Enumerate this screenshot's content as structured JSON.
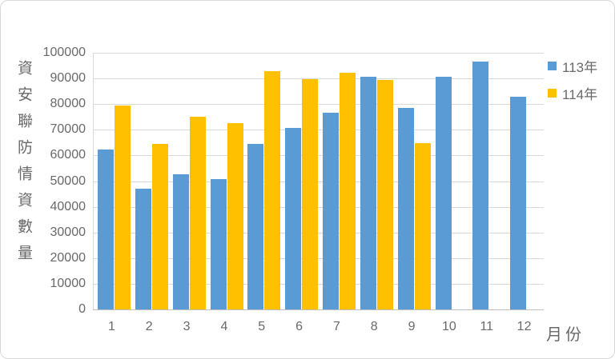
{
  "chart_data": {
    "type": "bar",
    "title": "",
    "xlabel": "月份",
    "ylabel": "資安聯防情資數量",
    "categories": [
      "1",
      "2",
      "3",
      "4",
      "5",
      "6",
      "7",
      "8",
      "9",
      "10",
      "11",
      "12"
    ],
    "series": [
      {
        "name": "113年",
        "color": "#5B9BD5",
        "values": [
          62200,
          47000,
          52600,
          50800,
          64500,
          70600,
          76500,
          90600,
          78500,
          90800,
          96500,
          83000
        ]
      },
      {
        "name": "114年",
        "color": "#FFC000",
        "values": [
          79400,
          64400,
          75100,
          72600,
          92800,
          89800,
          92300,
          89300,
          64800,
          null,
          null,
          null
        ]
      }
    ],
    "ylim": [
      0,
      100000
    ],
    "yticks": [
      0,
      10000,
      20000,
      30000,
      40000,
      50000,
      60000,
      70000,
      80000,
      90000,
      100000
    ],
    "ytick_labels": [
      "0",
      "10000",
      "20000",
      "30000",
      "40000",
      "50000",
      "60000",
      "70000",
      "80000",
      "90000",
      "100000"
    ],
    "grid": true,
    "legend_position": "top-right"
  },
  "colors": {
    "gridline": "#D9D9D9",
    "x_axis_line": "#BFBFBF",
    "y_axis_line": "#D9D9D9",
    "text": "#696969",
    "canvas_border": "#D9D9D9",
    "background": "#FFFFFF"
  }
}
